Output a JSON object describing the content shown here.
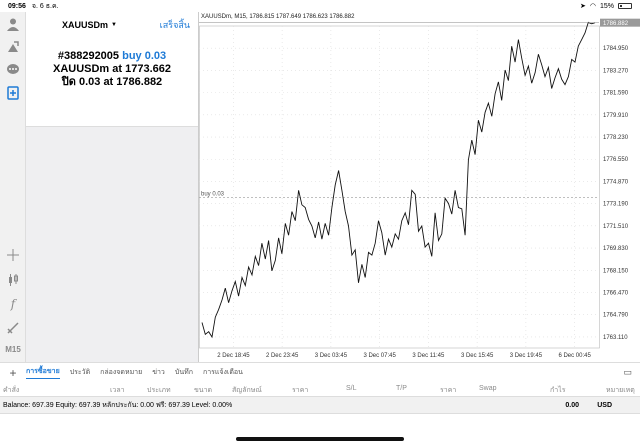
{
  "status": {
    "time": "09:56",
    "date": "จ. 6 ธ.ค.",
    "battery": "15%",
    "battery_level": 0.15
  },
  "order": {
    "symbol": "XAUUSDm",
    "done_label": "เสร็จสิ้น",
    "ticket": "#388292005",
    "side": "buy 0.03",
    "at_line_prefix": "XAUUSDm at",
    "open_price": "1773.662",
    "close_prefix": "ปิด 0.03 at",
    "close_price": "1786.882"
  },
  "sidebar": {
    "timeframe": "M15"
  },
  "chart_data": {
    "type": "line",
    "title": "XAUUSDm, M15, 1786.815 1787.649 1786.623 1786.882",
    "x_ticks": [
      "2 Dec 18:45",
      "2 Dec 23:45",
      "3 Dec 03:45",
      "3 Dec 07:45",
      "3 Dec 11:45",
      "3 Dec 15:45",
      "3 Dec 19:45",
      "6 Dec 00:45"
    ],
    "y_ticks": [
      "1784.950",
      "1783.270",
      "1781.590",
      "1779.910",
      "1778.230",
      "1776.550",
      "1774.870",
      "1773.190",
      "1771.510",
      "1769.830",
      "1768.150",
      "1766.470",
      "1764.790",
      "1763.110"
    ],
    "ylim": [
      1762.27,
      1786.63
    ],
    "current_price_label": "1786.882",
    "current_price": 1786.882,
    "order_line_label": "buy 0.03",
    "order_line_price": 1773.662,
    "values": [
      1764.2,
      1763.3,
      1763.5,
      1763.1,
      1764.6,
      1765.2,
      1765.9,
      1766.8,
      1765.7,
      1766.6,
      1767.3,
      1766.2,
      1767.6,
      1767.0,
      1768.4,
      1767.8,
      1769.2,
      1768.5,
      1770.2,
      1769.0,
      1770.4,
      1768.1,
      1768.9,
      1770.6,
      1769.4,
      1771.7,
      1770.8,
      1772.6,
      1771.9,
      1774.2,
      1773.1,
      1772.9,
      1772.0,
      1771.5,
      1770.6,
      1771.8,
      1770.5,
      1771.7,
      1770.8,
      1772.9,
      1774.6,
      1775.7,
      1774.2,
      1772.6,
      1771.5,
      1769.3,
      1769.7,
      1767.2,
      1768.6,
      1767.6,
      1769.5,
      1769.3,
      1770.2,
      1771.9,
      1771.0,
      1769.3,
      1770.5,
      1769.9,
      1770.9,
      1770.5,
      1771.9,
      1772.5,
      1771.6,
      1774.2,
      1773.9,
      1771.1,
      1771.5,
      1769.9,
      1770.2,
      1769.2,
      1772.5,
      1770.4,
      1770.9,
      1773.6,
      1773.2,
      1772.4,
      1774.2,
      1772.9,
      1772.8,
      1770.8,
      1776.5,
      1778.0,
      1776.9,
      1779.5,
      1778.6,
      1780.1,
      1780.8,
      1779.8,
      1781.5,
      1782.4,
      1781.0,
      1783.3,
      1782.5,
      1785.1,
      1783.9,
      1785.6,
      1784.2,
      1782.9,
      1783.6,
      1782.3,
      1783.1,
      1784.5,
      1783.7,
      1782.8,
      1783.5,
      1781.9,
      1782.7,
      1783.4,
      1782.6,
      1782.2,
      1782.8,
      1784.1,
      1783.9,
      1785.1,
      1785.6,
      1786.1,
      1786.9,
      1786.8,
      1786.882
    ]
  },
  "tabs": [
    "การซื้อขาย",
    "ประวัติ",
    "กล่องจดหมาย",
    "ข่าว",
    "บันทึก",
    "การแจ้งเตือน"
  ],
  "columns": [
    "คำสั่ง",
    "เวลา",
    "ประเภท",
    "ขนาด",
    "สัญลักษณ์",
    "ราคา",
    "S/L",
    "T/P",
    "ราคา",
    "Swap",
    "กำไร",
    "หมายเหตุ"
  ],
  "balance": {
    "text": "Balance: 697.39 Equity: 697.39 หลักประกัน: 0.00 ฟรี: 697.39 Level: 0.00%",
    "amount": "0.00",
    "currency": "USD"
  }
}
